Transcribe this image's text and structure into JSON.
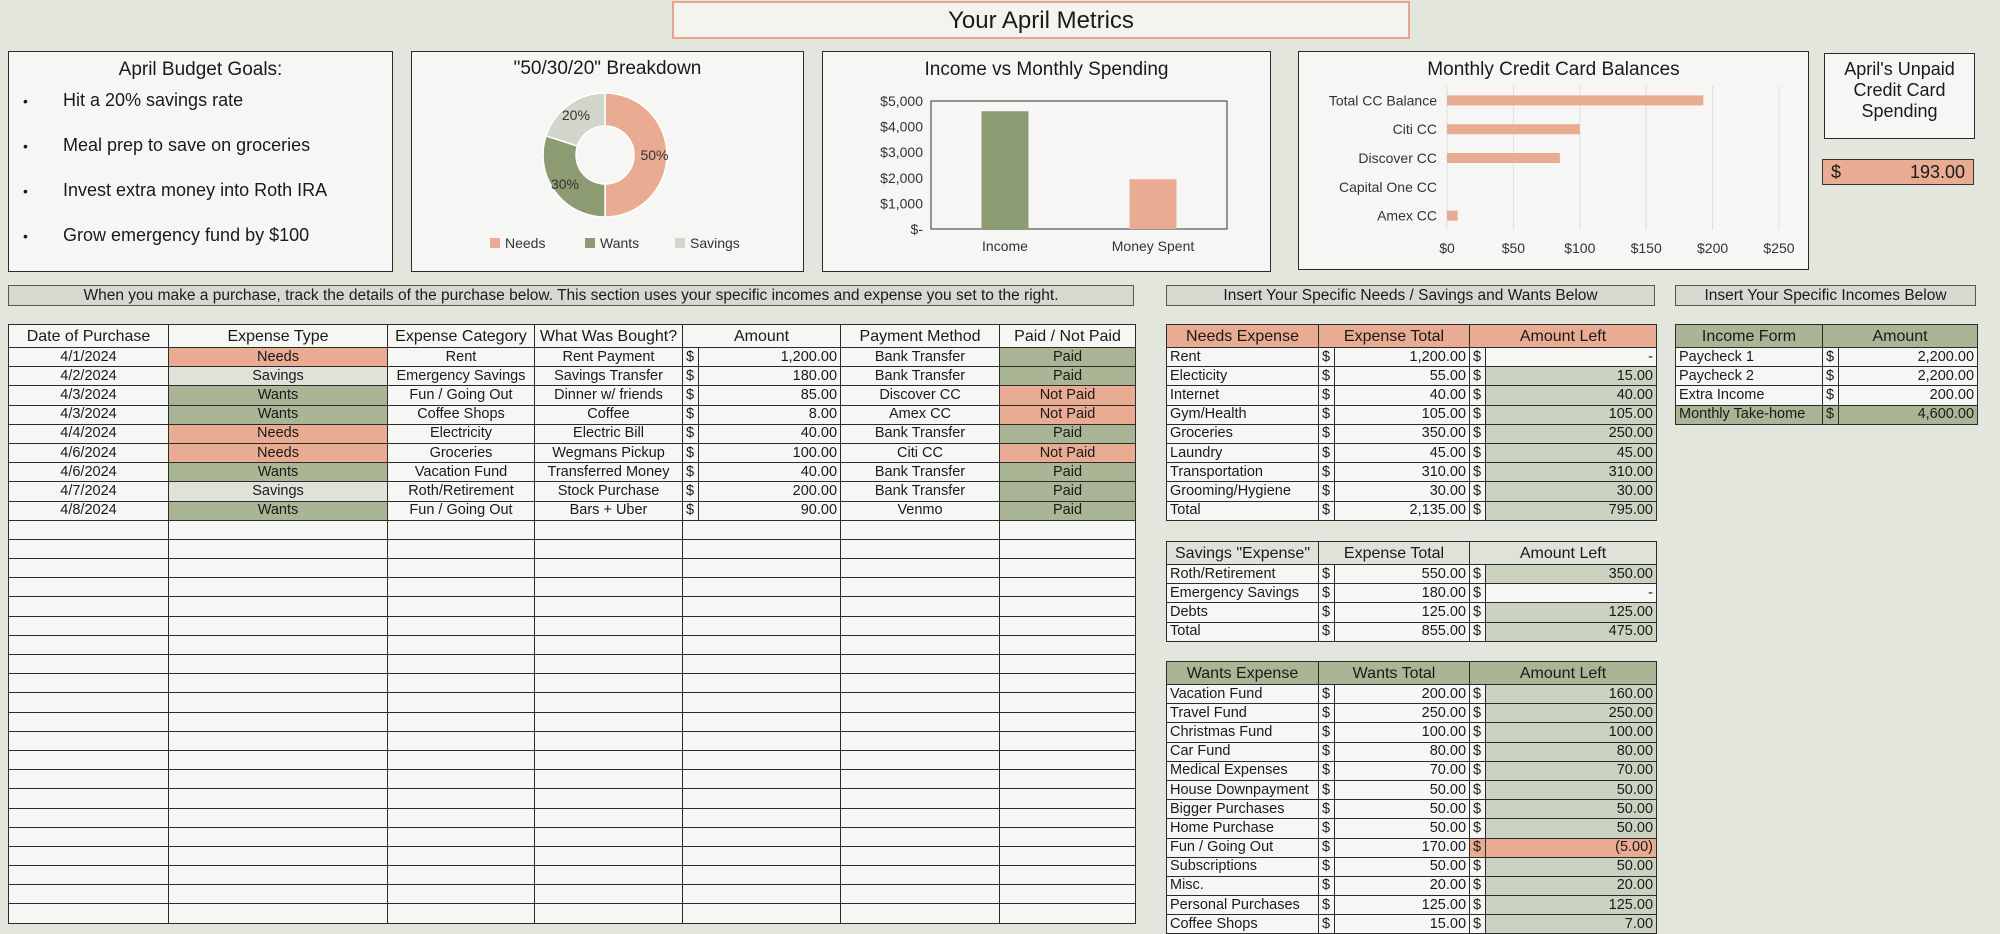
{
  "page_title": "Your April Metrics",
  "goals": {
    "title": "April Budget Goals:",
    "items": [
      "Hit a 20%  savings rate",
      "Meal prep to save on groceries",
      "Invest extra money into Roth IRA",
      "Grow emergency fund by $100"
    ]
  },
  "chart_data": [
    {
      "type": "pie",
      "title": "\"50/30/20\" Breakdown",
      "categories": [
        "Needs",
        "Wants",
        "Savings"
      ],
      "values": [
        50,
        30,
        20
      ],
      "labels": [
        "50%",
        "30%",
        "20%"
      ],
      "colors": [
        "#e9ab92",
        "#8c9b72",
        "#d2d6ca"
      ],
      "legend": "bottom"
    },
    {
      "type": "bar",
      "title": "Income vs Monthly Spending",
      "categories": [
        "Income",
        "Money Spent"
      ],
      "values": [
        4600,
        1943
      ],
      "colors": [
        "#8c9b72",
        "#e9ab92"
      ],
      "ylim": [
        0,
        5000
      ],
      "yticks": [
        "$-",
        "$1,000",
        "$2,000",
        "$3,000",
        "$4,000",
        "$5,000"
      ]
    },
    {
      "type": "bar",
      "orientation": "horizontal",
      "title": "Monthly Credit Card Balances",
      "categories": [
        "Total CC Balance",
        "Citi CC",
        "Discover CC",
        "Capital One CC",
        "Amex CC"
      ],
      "values": [
        193,
        100,
        85,
        0,
        8
      ],
      "color": "#e9ab92",
      "xlim": [
        0,
        250
      ],
      "xticks": [
        "$0",
        "$50",
        "$100",
        "$150",
        "$200",
        "$250"
      ],
      "grid": true
    }
  ],
  "unpaid": {
    "title": "April's Unpaid Credit Card Spending",
    "currency": "$",
    "value": "193.00"
  },
  "purchases": {
    "header": "When you make a purchase, track the details of the purchase below. This section uses your specific incomes and expense you set to the right.",
    "columns": [
      "Date of Purchase",
      "Expense Type",
      "Expense Category",
      "What Was Bought?",
      "Amount",
      "Payment Method",
      "Paid / Not Paid"
    ],
    "rows": [
      {
        "date": "4/1/2024",
        "type": "Needs",
        "category": "Rent",
        "item": "Rent Payment",
        "amount": "1,200.00",
        "method": "Bank Transfer",
        "status": "Paid"
      },
      {
        "date": "4/2/2024",
        "type": "Savings",
        "category": "Emergency Savings",
        "item": "Savings Transfer",
        "amount": "180.00",
        "method": "Bank Transfer",
        "status": "Paid"
      },
      {
        "date": "4/3/2024",
        "type": "Wants",
        "category": "Fun / Going Out",
        "item": "Dinner w/ friends",
        "amount": "85.00",
        "method": "Discover CC",
        "status": "Not Paid"
      },
      {
        "date": "4/3/2024",
        "type": "Wants",
        "category": "Coffee Shops",
        "item": "Coffee",
        "amount": "8.00",
        "method": "Amex CC",
        "status": "Not Paid"
      },
      {
        "date": "4/4/2024",
        "type": "Needs",
        "category": "Electricity",
        "item": "Electric Bill",
        "amount": "40.00",
        "method": "Bank Transfer",
        "status": "Paid"
      },
      {
        "date": "4/6/2024",
        "type": "Needs",
        "category": "Groceries",
        "item": "Wegmans Pickup",
        "amount": "100.00",
        "method": "Citi CC",
        "status": "Not Paid"
      },
      {
        "date": "4/6/2024",
        "type": "Wants",
        "category": "Vacation Fund",
        "item": "Transferred Money",
        "amount": "40.00",
        "method": "Bank Transfer",
        "status": "Paid"
      },
      {
        "date": "4/7/2024",
        "type": "Savings",
        "category": "Roth/Retirement",
        "item": "Stock Purchase",
        "amount": "200.00",
        "method": "Bank Transfer",
        "status": "Paid"
      },
      {
        "date": "4/8/2024",
        "type": "Wants",
        "category": "Fun / Going Out",
        "item": "Bars + Uber",
        "amount": "90.00",
        "method": "Venmo",
        "status": "Paid"
      }
    ],
    "currency": "$"
  },
  "needs_section": {
    "header": "Insert Your Specific Needs / Savings and Wants Below",
    "needs": {
      "columns": [
        "Needs Expense",
        "Expense Total",
        "Amount Left"
      ],
      "rows": [
        {
          "name": "Rent",
          "total": "1,200.00",
          "left": "-"
        },
        {
          "name": "Electicity",
          "total": "55.00",
          "left": "15.00"
        },
        {
          "name": "Internet",
          "total": "40.00",
          "left": "40.00"
        },
        {
          "name": "Gym/Health",
          "total": "105.00",
          "left": "105.00"
        },
        {
          "name": "Groceries",
          "total": "350.00",
          "left": "250.00"
        },
        {
          "name": "Laundry",
          "total": "45.00",
          "left": "45.00"
        },
        {
          "name": "Transportation",
          "total": "310.00",
          "left": "310.00"
        },
        {
          "name": "Grooming/Hygiene",
          "total": "30.00",
          "left": "30.00"
        },
        {
          "name": "Total",
          "total": "2,135.00",
          "left": "795.00"
        }
      ]
    },
    "savings": {
      "columns": [
        "Savings \"Expense\"",
        "Expense Total",
        "Amount Left"
      ],
      "rows": [
        {
          "name": "Roth/Retirement",
          "total": "550.00",
          "left": "350.00"
        },
        {
          "name": "Emergency Savings",
          "total": "180.00",
          "left": "-"
        },
        {
          "name": "Debts",
          "total": "125.00",
          "left": "125.00"
        },
        {
          "name": "Total",
          "total": "855.00",
          "left": "475.00"
        }
      ]
    },
    "wants": {
      "columns": [
        "Wants Expense",
        "Wants Total",
        "Amount Left"
      ],
      "rows": [
        {
          "name": "Vacation Fund",
          "total": "200.00",
          "left": "160.00"
        },
        {
          "name": "Travel Fund",
          "total": "250.00",
          "left": "250.00"
        },
        {
          "name": "Christmas Fund",
          "total": "100.00",
          "left": "100.00"
        },
        {
          "name": "Car Fund",
          "total": "80.00",
          "left": "80.00"
        },
        {
          "name": "Medical Expenses",
          "total": "70.00",
          "left": "70.00"
        },
        {
          "name": "House Downpayment",
          "total": "50.00",
          "left": "50.00"
        },
        {
          "name": "Bigger Purchases",
          "total": "50.00",
          "left": "50.00"
        },
        {
          "name": "Home Purchase",
          "total": "50.00",
          "left": "50.00"
        },
        {
          "name": "Fun / Going Out",
          "total": "170.00",
          "left": "(5.00)"
        },
        {
          "name": "Subscriptions",
          "total": "50.00",
          "left": "50.00"
        },
        {
          "name": "Misc.",
          "total": "20.00",
          "left": "20.00"
        },
        {
          "name": "Personal Purchases",
          "total": "125.00",
          "left": "125.00"
        },
        {
          "name": "Coffee Shops",
          "total": "15.00",
          "left": "7.00"
        }
      ]
    },
    "currency": "$"
  },
  "incomes_section": {
    "header": "Insert Your Specific Incomes Below",
    "columns": [
      "Income Form",
      "Amount"
    ],
    "rows": [
      {
        "name": "Paycheck 1",
        "amount": "2,200.00"
      },
      {
        "name": "Paycheck 2",
        "amount": "2,200.00"
      },
      {
        "name": "Extra Income",
        "amount": "200.00"
      },
      {
        "name": "Monthly Take-home",
        "amount": "4,600.00"
      }
    ],
    "currency": "$"
  }
}
